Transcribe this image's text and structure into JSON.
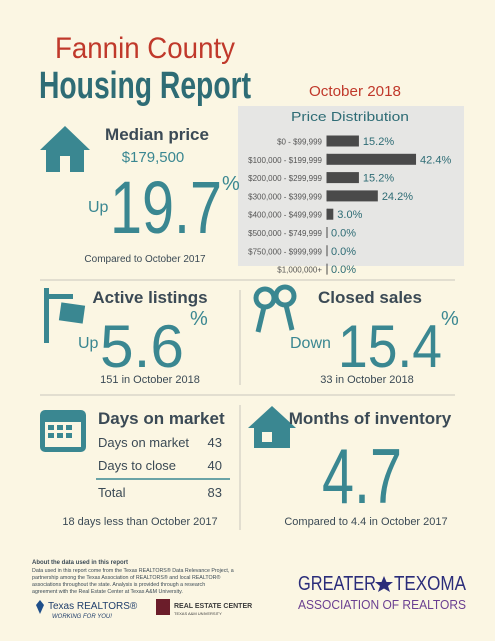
{
  "header": {
    "title_line1": "Fannin County",
    "title_line2": "Housing Report",
    "date": "October 2018"
  },
  "price_distribution": {
    "title": "Price Distribution",
    "categories": [
      "$0 - $99,999",
      "$100,000 - $199,999",
      "$200,000 - $299,999",
      "$300,000 - $399,999",
      "$400,000 - $499,999",
      "$500,000 - $749,999",
      "$750,000 - $999,999",
      "$1,000,000+"
    ],
    "values": [
      15.2,
      42.4,
      15.2,
      24.2,
      3.0,
      0.0,
      0.0,
      0.0
    ],
    "value_labels": [
      "15.2%",
      "42.4%",
      "15.2%",
      "24.2%",
      "3.0%",
      "0.0%",
      "0.0%",
      "0.0%"
    ],
    "color": "#4a4a4a"
  },
  "median_price": {
    "label": "Median price",
    "value": "$179,500",
    "direction": "Up",
    "change": "19.7",
    "unit": "%",
    "comparison": "Compared to October 2017"
  },
  "active_listings": {
    "label": "Active listings",
    "direction": "Up",
    "change": "5.6",
    "unit": "%",
    "note": "151 in October 2018"
  },
  "closed_sales": {
    "label": "Closed sales",
    "direction": "Down",
    "change": "15.4",
    "unit": "%",
    "note": "33 in October 2018"
  },
  "days_on_market": {
    "label": "Days on market",
    "rows": [
      [
        "Days on market",
        "43"
      ],
      [
        "Days to close",
        "40"
      ],
      [
        "Total",
        "83"
      ]
    ],
    "note": "18 days less than October 2017"
  },
  "months_inventory": {
    "label": "Months of inventory",
    "value": "4.7",
    "note": "Compared to 4.4 in October 2017"
  },
  "footer": {
    "about_title": "About the data used in this report",
    "about_lines": [
      "Data used in this report come from the Texas REALTORS® Data Relevance Project, a",
      "partnership among the Texas Association of REALTORS® and local REALTOR®",
      "associations throughout the state. Analysis is provided through a research",
      "agreement with the Real Estate Center at Texas A&M University."
    ],
    "texas_realtors": "Texas REALTORS®",
    "texas_realtors_tagline": "WORKING FOR YOU!",
    "rec_name": "REAL ESTATE CENTER",
    "rec_sub": "TEXAS A&M UNIVERSITY",
    "assoc_word1": "GREATER",
    "assoc_word2": "TEXOMA",
    "assoc_line2": "ASSOCIATION OF REALTORS"
  }
}
